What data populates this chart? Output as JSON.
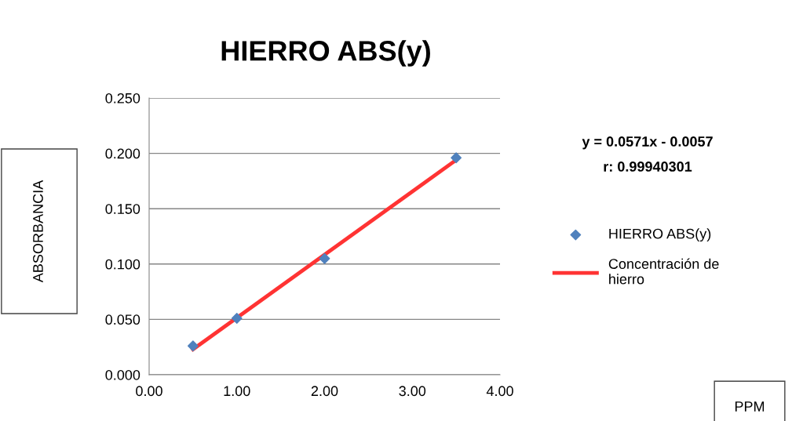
{
  "chart_data": {
    "type": "scatter",
    "title": "HIERRO ABS(y)",
    "ylabel": "ABSORBANCIA",
    "xlim": [
      0,
      4
    ],
    "xticks": [
      {
        "value": 0,
        "label": "0.00"
      },
      {
        "value": 1,
        "label": "1.00"
      },
      {
        "value": 2,
        "label": "2.00"
      },
      {
        "value": 3,
        "label": "3.00"
      },
      {
        "value": 4,
        "label": "4.00"
      }
    ],
    "ylim": [
      0,
      0.25
    ],
    "yticks": [
      {
        "value": 0,
        "label": "0.000"
      },
      {
        "value": 0.05,
        "label": "0.050"
      },
      {
        "value": 0.1,
        "label": "0.100"
      },
      {
        "value": 0.15,
        "label": "0.150"
      },
      {
        "value": 0.2,
        "label": "0.200"
      },
      {
        "value": 0.25,
        "label": "0.250"
      }
    ],
    "grid": "y",
    "legend": "right",
    "annotations": [
      "y = 0.0571x - 0.0057",
      "r: 0.99940301",
      "PPM"
    ],
    "series": [
      {
        "name": "HIERRO ABS(y)",
        "marker": "diamond",
        "color": "#4f81bd",
        "x": [
          0.5,
          1,
          2,
          3.5
        ],
        "values": [
          0.026,
          0.051,
          0.105,
          0.196
        ]
      },
      {
        "name": "Concentración de\nhierro",
        "type": "line",
        "marker": "none",
        "color": "#ff3333",
        "x": [
          0.5,
          3.5
        ],
        "values": [
          0.0229,
          0.194
        ]
      }
    ]
  }
}
